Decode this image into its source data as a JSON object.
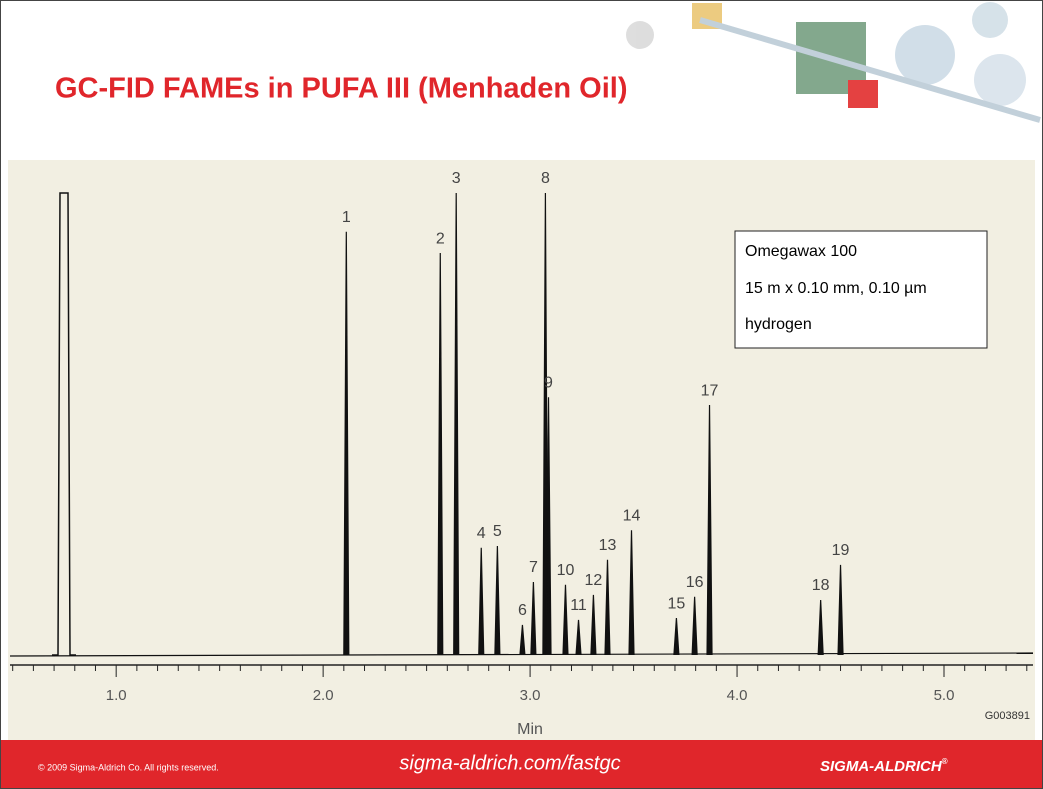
{
  "header": {
    "title": "GC-FID FAMEs in PUFA III (Menhaden Oil)"
  },
  "chart_data": {
    "type": "chromatogram",
    "xlabel": "Min",
    "code": "G003891",
    "annotation": [
      "Omegawax 100",
      "15 m x 0.10 mm, 0.10 µm",
      "hydrogen"
    ],
    "categories": [
      "1",
      "2",
      "3",
      "4",
      "5",
      "6",
      "7",
      "8",
      "9",
      "10",
      "11",
      "12",
      "13",
      "14",
      "15",
      "16",
      "17",
      "18",
      "19"
    ],
    "x": [
      2.112,
      2.566,
      2.643,
      2.764,
      2.842,
      2.963,
      3.016,
      3.074,
      3.089,
      3.171,
      3.234,
      3.306,
      3.374,
      3.49,
      3.707,
      3.795,
      3.867,
      4.404,
      4.5
    ],
    "values": [
      91.6,
      87.0,
      100,
      23.2,
      23.6,
      6.5,
      15.8,
      100,
      55.8,
      15.2,
      7.6,
      13,
      20.6,
      27,
      8,
      12.6,
      54.1,
      11.9,
      19.5
    ],
    "color": "#111111",
    "xlim": [
      0.487,
      5.43
    ],
    "ylim": [
      0,
      100
    ],
    "xticks": [
      {
        "value": 1,
        "label": "1.0"
      },
      {
        "value": 2,
        "label": "2.0"
      },
      {
        "value": 3,
        "label": "3.0"
      },
      {
        "value": 4,
        "label": "4.0"
      },
      {
        "value": 5,
        "label": "5.0"
      }
    ],
    "xminorticks": [
      0.5,
      0.6,
      0.7,
      0.8,
      0.9,
      1.1,
      1.2,
      1.3,
      1.4,
      1.5,
      1.6,
      1.7,
      1.8,
      1.9,
      2.1,
      2.2,
      2.3,
      2.4,
      2.5,
      2.6,
      2.7,
      2.8,
      2.9,
      3.1,
      3.2,
      3.3,
      3.4,
      3.5,
      3.6,
      3.7,
      3.8,
      3.9,
      4.1,
      4.2,
      4.3,
      4.4,
      4.5,
      4.6,
      4.7,
      4.8,
      4.9,
      5.1,
      5.2,
      5.3,
      5.4
    ]
  },
  "footer": {
    "copyright": "© 2009 Sigma-Aldrich Co. All rights reserved.",
    "url": "sigma-aldrich.com/fastgc",
    "brand": "SIGMA-ALDRICH",
    "mark": "®"
  }
}
